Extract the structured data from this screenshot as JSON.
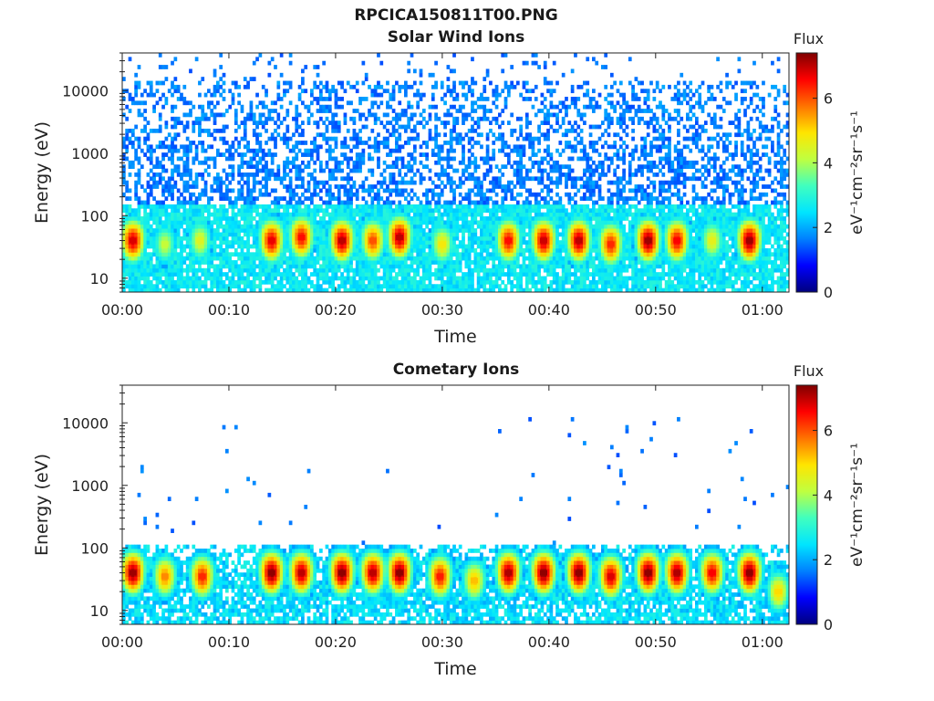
{
  "figure": {
    "title": "RPCICA150811T00.PNG"
  },
  "colorscale": {
    "stops": [
      "#00007f",
      "#0000ff",
      "#0080ff",
      "#00e5ff",
      "#40ffbf",
      "#bfff40",
      "#ffe500",
      "#ff7300",
      "#ff0000",
      "#7f0000"
    ]
  },
  "chart_data": [
    {
      "type": "heatmap",
      "title": "Solar Wind Ions",
      "xlabel": "Time",
      "ylabel": "Energy (eV)",
      "yscale": "log",
      "xlim": [
        "00:00",
        "01:02"
      ],
      "ylim": [
        6,
        40000
      ],
      "x_ticks": [
        "00:00",
        "00:10",
        "00:20",
        "00:30",
        "00:40",
        "00:50",
        "01:00"
      ],
      "y_ticks": [
        "10",
        "100",
        "1000",
        "10000"
      ],
      "colorbar": {
        "label": "Flux",
        "unit_label": "eV⁻¹cm⁻²sr⁻¹s⁻¹",
        "range": [
          0,
          7.4
        ],
        "ticks": [
          "0",
          "2",
          "4",
          "6"
        ]
      },
      "grid": false,
      "background_flux": {
        "energy_band_eV": [
          6,
          15000
        ],
        "level": 2.0,
        "max_sparse_energy_eV": 40000
      },
      "bursts": [
        {
          "t": 1.0,
          "peak_energy_eV": 40,
          "peak_flux": 6.8
        },
        {
          "t": 4.0,
          "peak_energy_eV": 35,
          "peak_flux": 4.2
        },
        {
          "t": 7.3,
          "peak_energy_eV": 40,
          "peak_flux": 4.5
        },
        {
          "t": 14.0,
          "peak_energy_eV": 40,
          "peak_flux": 6.7
        },
        {
          "t": 16.8,
          "peak_energy_eV": 45,
          "peak_flux": 6.5
        },
        {
          "t": 20.6,
          "peak_energy_eV": 40,
          "peak_flux": 7.0
        },
        {
          "t": 23.5,
          "peak_energy_eV": 40,
          "peak_flux": 6.0
        },
        {
          "t": 26.0,
          "peak_energy_eV": 45,
          "peak_flux": 7.0
        },
        {
          "t": 30.0,
          "peak_energy_eV": 35,
          "peak_flux": 4.8
        },
        {
          "t": 36.2,
          "peak_energy_eV": 40,
          "peak_flux": 6.5
        },
        {
          "t": 39.5,
          "peak_energy_eV": 40,
          "peak_flux": 6.9
        },
        {
          "t": 42.8,
          "peak_energy_eV": 40,
          "peak_flux": 7.0
        },
        {
          "t": 45.8,
          "peak_energy_eV": 35,
          "peak_flux": 6.3
        },
        {
          "t": 49.3,
          "peak_energy_eV": 40,
          "peak_flux": 7.2
        },
        {
          "t": 52.0,
          "peak_energy_eV": 40,
          "peak_flux": 6.6
        },
        {
          "t": 55.3,
          "peak_energy_eV": 40,
          "peak_flux": 4.6
        },
        {
          "t": 58.8,
          "peak_energy_eV": 40,
          "peak_flux": 7.2
        }
      ]
    },
    {
      "type": "heatmap",
      "title": "Cometary Ions",
      "xlabel": "Time",
      "ylabel": "Energy (eV)",
      "yscale": "log",
      "xlim": [
        "00:00",
        "01:02"
      ],
      "ylim": [
        6,
        40000
      ],
      "x_ticks": [
        "00:00",
        "00:10",
        "00:20",
        "00:30",
        "00:40",
        "00:50",
        "01:00"
      ],
      "y_ticks": [
        "10",
        "100",
        "1000",
        "10000"
      ],
      "colorbar": {
        "label": "Flux",
        "unit_label": "eV⁻¹cm⁻²sr⁻¹s⁻¹",
        "range": [
          0,
          7.4
        ],
        "ticks": [
          "0",
          "2",
          "4",
          "6"
        ]
      },
      "grid": false,
      "background_flux": {
        "energy_band_eV": [
          6,
          120
        ],
        "level": 2.4,
        "max_sparse_energy_eV": 12000
      },
      "bursts": [
        {
          "t": 1.0,
          "peak_energy_eV": 40,
          "peak_flux": 7.2
        },
        {
          "t": 4.0,
          "peak_energy_eV": 35,
          "peak_flux": 5.6
        },
        {
          "t": 7.5,
          "peak_energy_eV": 35,
          "peak_flux": 6.3
        },
        {
          "t": 14.0,
          "peak_energy_eV": 40,
          "peak_flux": 7.3
        },
        {
          "t": 16.8,
          "peak_energy_eV": 40,
          "peak_flux": 7.0
        },
        {
          "t": 20.6,
          "peak_energy_eV": 40,
          "peak_flux": 7.3
        },
        {
          "t": 23.5,
          "peak_energy_eV": 40,
          "peak_flux": 7.0
        },
        {
          "t": 26.0,
          "peak_energy_eV": 40,
          "peak_flux": 7.3
        },
        {
          "t": 29.8,
          "peak_energy_eV": 35,
          "peak_flux": 6.4
        },
        {
          "t": 33.0,
          "peak_energy_eV": 30,
          "peak_flux": 5.2
        },
        {
          "t": 36.2,
          "peak_energy_eV": 40,
          "peak_flux": 7.1
        },
        {
          "t": 39.5,
          "peak_energy_eV": 40,
          "peak_flux": 7.3
        },
        {
          "t": 42.8,
          "peak_energy_eV": 40,
          "peak_flux": 7.3
        },
        {
          "t": 45.8,
          "peak_energy_eV": 35,
          "peak_flux": 6.8
        },
        {
          "t": 49.3,
          "peak_energy_eV": 40,
          "peak_flux": 7.3
        },
        {
          "t": 52.0,
          "peak_energy_eV": 40,
          "peak_flux": 7.1
        },
        {
          "t": 55.3,
          "peak_energy_eV": 40,
          "peak_flux": 6.6
        },
        {
          "t": 58.8,
          "peak_energy_eV": 40,
          "peak_flux": 7.3
        },
        {
          "t": 61.5,
          "peak_energy_eV": 20,
          "peak_flux": 5.0
        }
      ]
    }
  ]
}
